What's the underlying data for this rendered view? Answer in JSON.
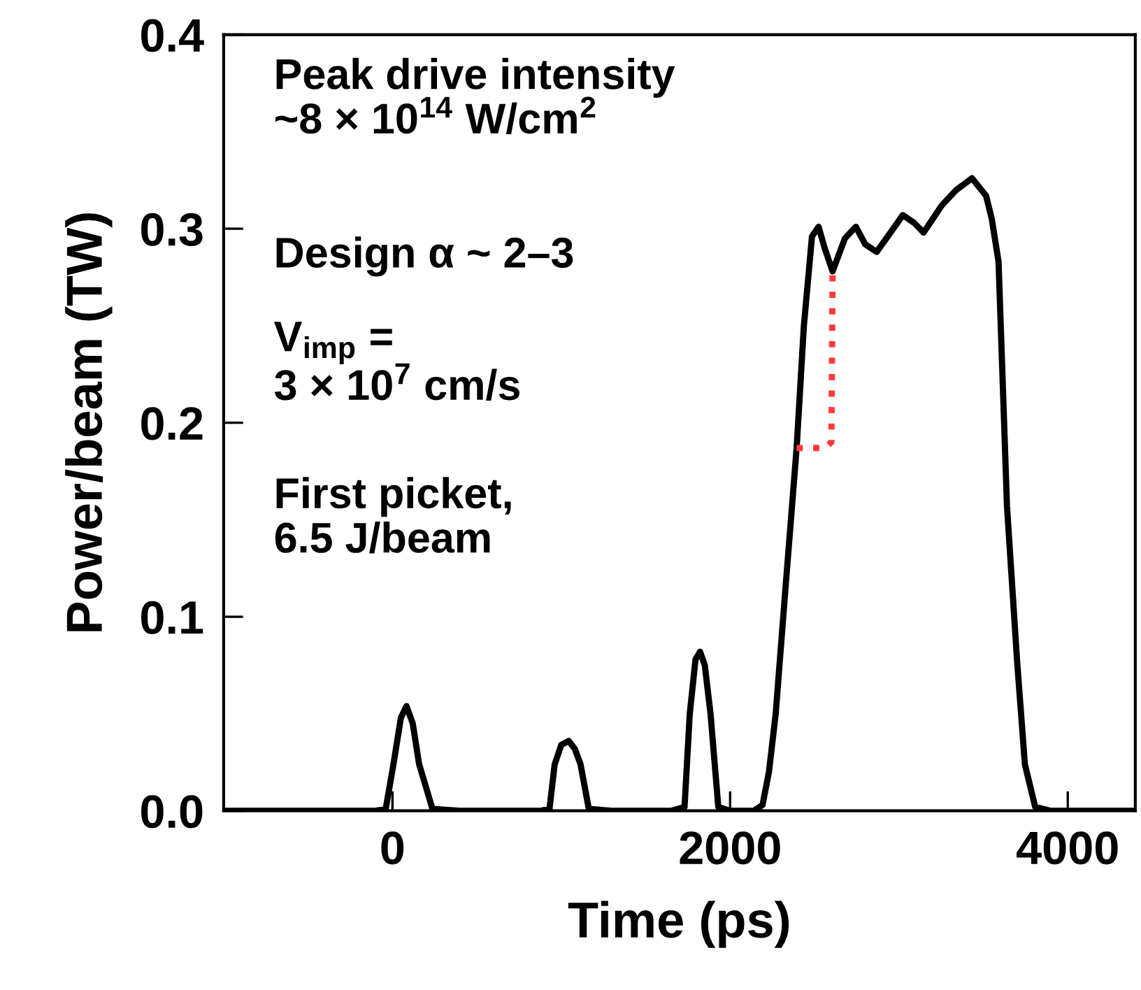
{
  "chart_data": {
    "type": "line",
    "xlabel": "Time (ps)",
    "ylabel": "Power/beam (TW)",
    "xlim": [
      -1000,
      4400
    ],
    "ylim": [
      0,
      0.4
    ],
    "xticks": [
      0,
      2000,
      4000
    ],
    "yticks": [
      {
        "value": 0,
        "label": "0.0"
      },
      {
        "value": 0.1,
        "label": "0.1"
      },
      {
        "value": 0.2,
        "label": "0.2"
      },
      {
        "value": 0.3,
        "label": "0.3"
      },
      {
        "value": 0.4,
        "label": "0.4"
      }
    ],
    "grid": false,
    "legend": false,
    "marker": "none",
    "series": [
      {
        "color": "#000000",
        "line_style": "solid",
        "x": [
          -1000,
          -100,
          -40,
          6,
          50,
          83,
          120,
          158,
          237,
          400,
          880,
          930,
          961,
          1000,
          1044,
          1080,
          1114,
          1163,
          1300,
          1650,
          1730,
          1761,
          1795,
          1822,
          1850,
          1884,
          1930,
          2000,
          2070,
          2140,
          2192,
          2230,
          2270,
          2330,
          2394,
          2437,
          2485,
          2524,
          2560,
          2607,
          2680,
          2745,
          2800,
          2868,
          2950,
          3023,
          3090,
          3146,
          3200,
          3254,
          3340,
          3433,
          3516,
          3550,
          3590,
          3640,
          3700,
          3746,
          3807,
          3900,
          4400
        ],
        "values": [
          0,
          0,
          0.001,
          0.024,
          0.048,
          0.054,
          0.045,
          0.024,
          0.001,
          0,
          0,
          0.001,
          0.024,
          0.034,
          0.036,
          0.032,
          0.024,
          0.001,
          0,
          0,
          0.002,
          0.05,
          0.078,
          0.082,
          0.075,
          0.05,
          0.002,
          0,
          0,
          0,
          0.003,
          0.02,
          0.05,
          0.117,
          0.187,
          0.25,
          0.296,
          0.301,
          0.29,
          0.278,
          0.295,
          0.301,
          0.292,
          0.288,
          0.298,
          0.307,
          0.303,
          0.298,
          0.305,
          0.312,
          0.32,
          0.326,
          0.317,
          0.305,
          0.283,
          0.157,
          0.077,
          0.024,
          0.002,
          0,
          0
        ]
      },
      {
        "color": "#ff3b3b",
        "line_style": "dotted",
        "x": [
          2394,
          2560,
          2600,
          2607
        ],
        "values": [
          0.187,
          0.187,
          0.19,
          0.278
        ]
      }
    ],
    "annotations": [
      "Peak drive intensity\n~8 × 10$^{14}$ W/cm$^{2}$",
      "Design α ~ 2–3",
      "V$_{imp}$ =\n3 × 10$^{7}$ cm/s",
      "First picket,\n6.5 J/beam"
    ]
  }
}
